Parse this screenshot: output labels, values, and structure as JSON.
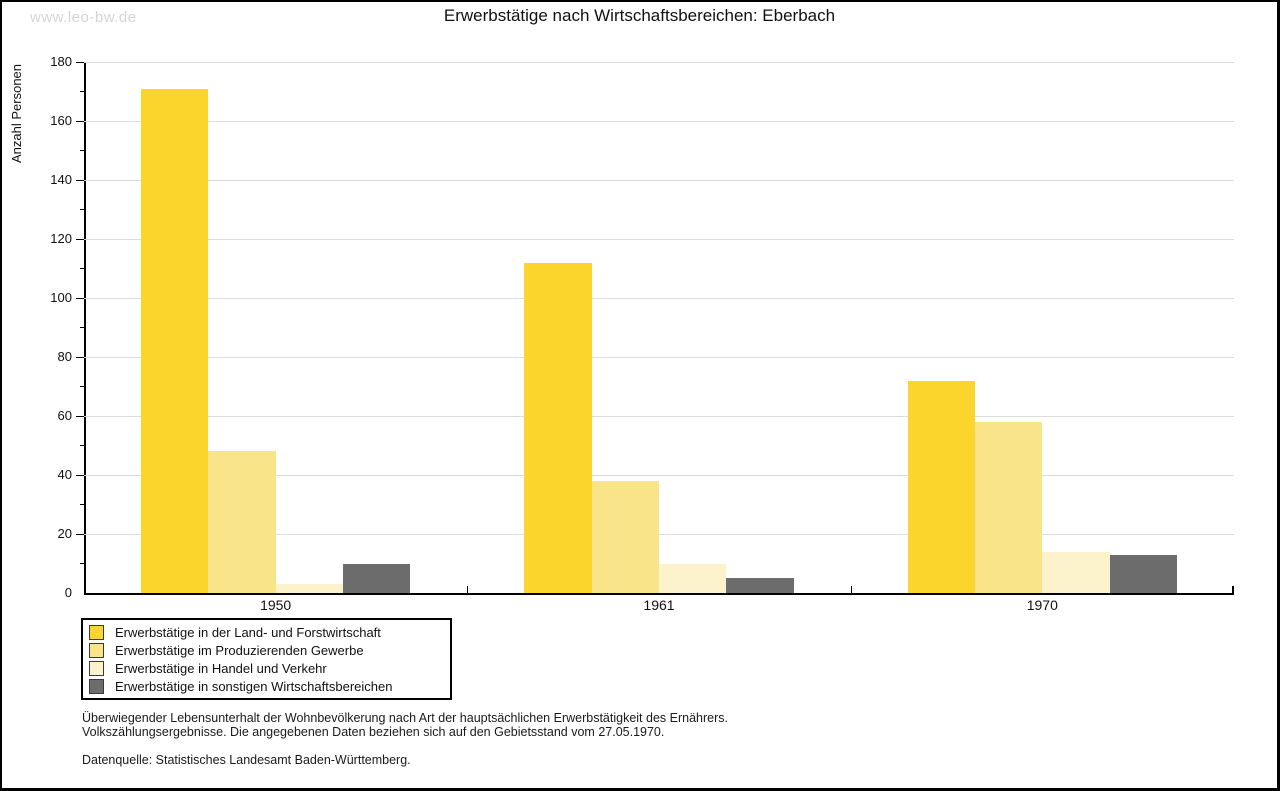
{
  "page": {
    "watermark": "www.leo-bw.de",
    "title": "Erwerbstätige nach Wirtschaftsbereichen: Eberbach"
  },
  "chart_data": {
    "type": "bar",
    "title": "Erwerbstätige nach Wirtschaftsbereichen: Eberbach",
    "xlabel": "",
    "ylabel": "Anzahl Personen",
    "categories": [
      "1950",
      "1961",
      "1970"
    ],
    "series": [
      {
        "name": "Erwerbstätige in der Land- und Forstwirtschaft",
        "color": "#fbd42c",
        "values": [
          171,
          112,
          72
        ]
      },
      {
        "name": "Erwerbstätige im Produzierenden Gewerbe",
        "color": "#fae489",
        "values": [
          48,
          38,
          58
        ]
      },
      {
        "name": "Erwerbstätige in Handel und Verkehr",
        "color": "#fcf3cd",
        "values": [
          3,
          10,
          14
        ]
      },
      {
        "name": "Erwerbstätige in sonstigen Wirtschaftsbereichen",
        "color": "#6c6c6c",
        "values": [
          10,
          5,
          13
        ]
      }
    ],
    "ylim": [
      0,
      180
    ],
    "ytick_step": 20,
    "yminor_step": 10,
    "grid": true,
    "gridline_color": "#dcdcdc",
    "legend_position": "bottom-left"
  },
  "footnotes": {
    "line1": "Überwiegender Lebensunterhalt der Wohnbevölkerung nach Art der hauptsächlichen Erwerbstätigkeit des Ernährers.",
    "line2": "Volkszählungsergebnisse. Die angegebenen Daten beziehen sich auf den Gebietsstand vom 27.05.1970.",
    "datasource": "Datenquelle: Statistisches Landesamt Baden-Württemberg."
  }
}
